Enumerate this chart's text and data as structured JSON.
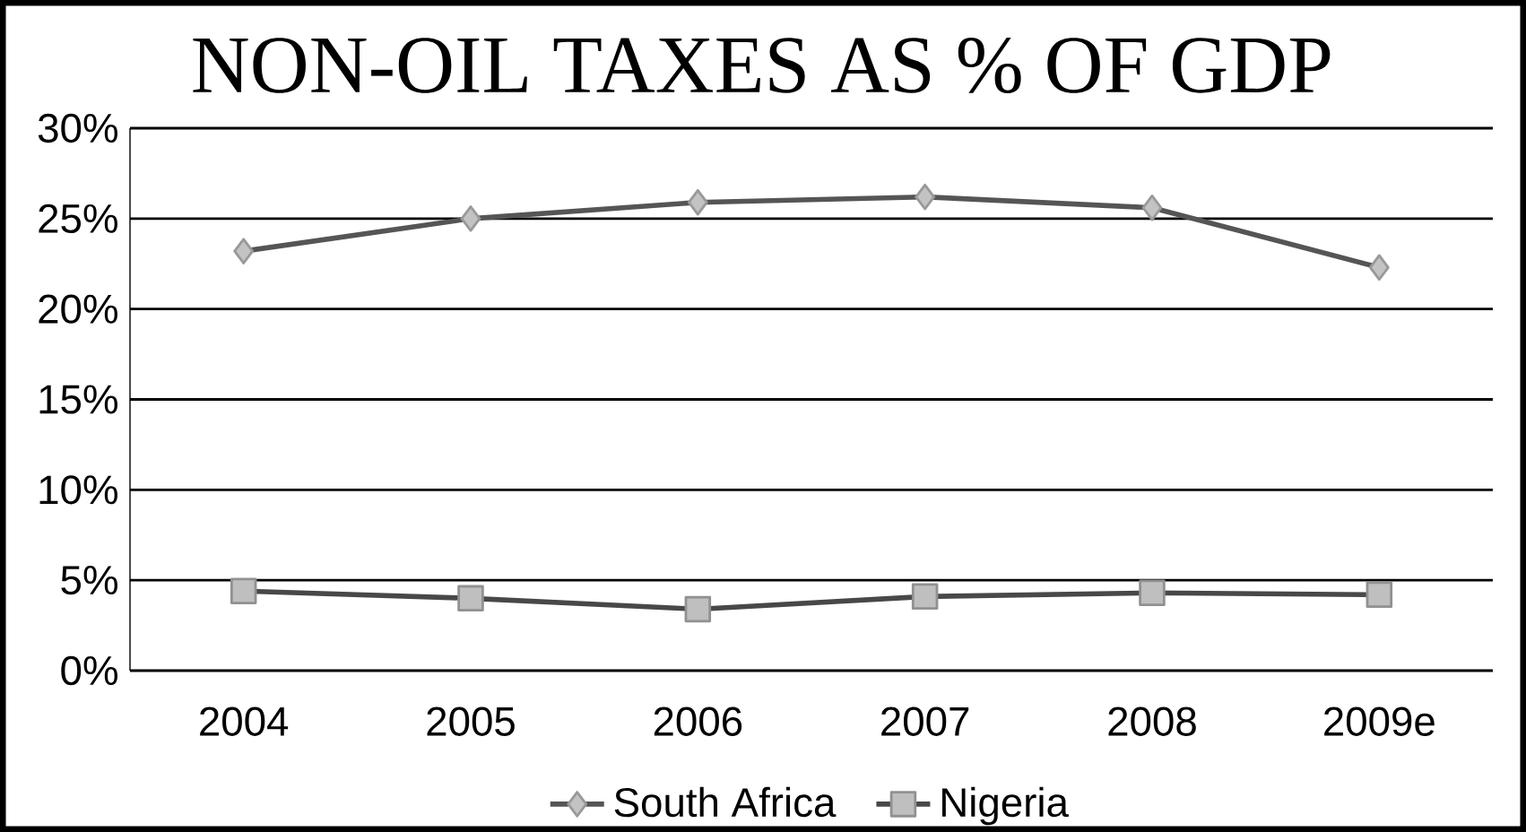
{
  "chart_data": {
    "type": "line",
    "title": "NON-OIL TAXES AS % OF GDP",
    "categories": [
      "2004",
      "2005",
      "2006",
      "2007",
      "2008",
      "2009e"
    ],
    "series": [
      {
        "name": "South Africa",
        "color": "#555555",
        "marker": "diamond",
        "values": [
          23.2,
          25.0,
          25.9,
          26.2,
          25.6,
          22.3
        ]
      },
      {
        "name": "Nigeria",
        "color": "#484848",
        "marker": "square",
        "values": [
          4.4,
          4.0,
          3.4,
          4.1,
          4.3,
          4.2
        ]
      }
    ],
    "ylim": [
      0,
      30
    ],
    "yticks": [
      {
        "value": 0,
        "label": "0%"
      },
      {
        "value": 5,
        "label": "5%"
      },
      {
        "value": 10,
        "label": "10%"
      },
      {
        "value": 15,
        "label": "15%"
      },
      {
        "value": 20,
        "label": "20%"
      },
      {
        "value": 25,
        "label": "25%"
      },
      {
        "value": 30,
        "label": "30%"
      }
    ],
    "grid": "y",
    "legend": "bottom"
  }
}
